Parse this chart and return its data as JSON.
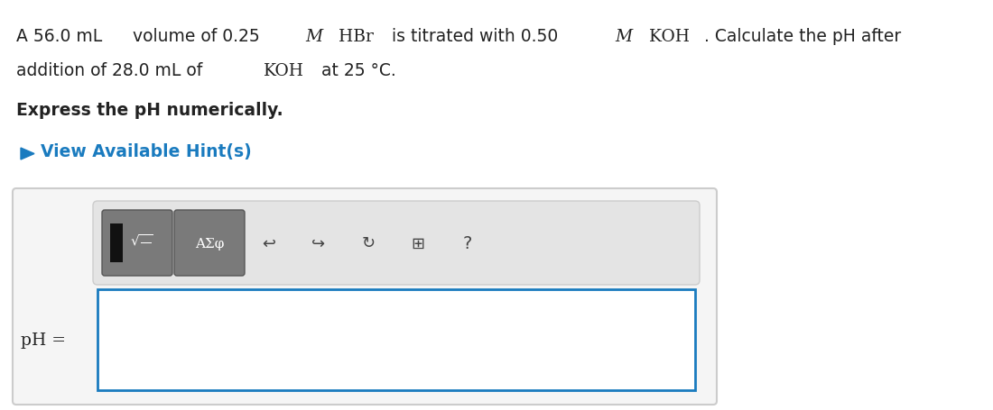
{
  "bg_color": "#ffffff",
  "title_line1_parts": [
    {
      "text": "A 56.0 mL",
      "style": "normal",
      "font": "serif"
    },
    {
      "text": " volume of 0.25 ",
      "style": "normal",
      "font": "sans"
    },
    {
      "text": "M",
      "style": "italic",
      "font": "serif"
    },
    {
      "text": "  HBr",
      "style": "normal",
      "font": "serif"
    },
    {
      "text": " is titrated with 0.50 ",
      "style": "normal",
      "font": "sans"
    },
    {
      "text": "M",
      "style": "italic",
      "font": "serif"
    },
    {
      "text": "  KOH",
      "style": "normal",
      "font": "serif"
    },
    {
      "text": ". Calculate the pH after",
      "style": "normal",
      "font": "sans"
    }
  ],
  "title_line2_parts": [
    {
      "text": "addition of 28.0 mL of ",
      "style": "normal",
      "font": "sans"
    },
    {
      "text": "KOH",
      "style": "normal",
      "font": "serif"
    },
    {
      "text": " at 25 °C.",
      "style": "normal",
      "font": "sans"
    }
  ],
  "bold_line": "Express the pH numerically.",
  "hint_text": "View Available Hint(s)",
  "hint_color": "#1a7bbf",
  "panel_bg": "#f0f0f0",
  "panel_border": "#cccccc",
  "panel_box_bg": "#e8e8e8",
  "panel_box_border": "#bbbbbb",
  "input_border": "#1a7bbf",
  "input_bg": "#ffffff",
  "ph_label": "pH =",
  "button1_bg": "#888888",
  "button2_bg": "#888888",
  "toolbar_bg": "#e8e8e8"
}
